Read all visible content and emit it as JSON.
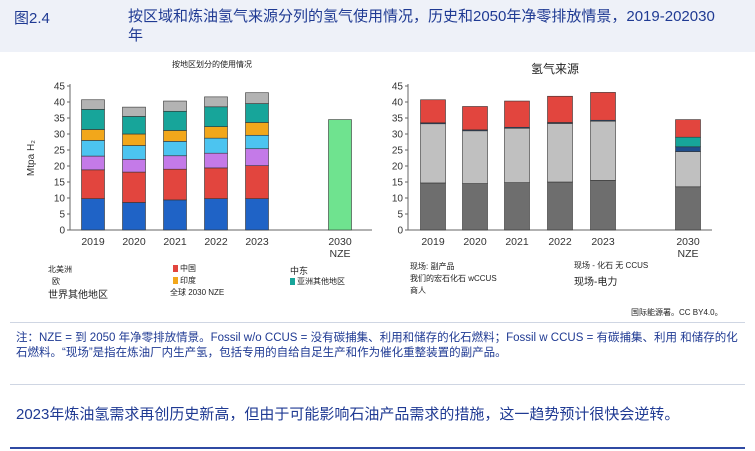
{
  "figure": {
    "label": "图2.4",
    "title": "按区域和炼油氢气来源分列的氢气使用情况，历史和2050年净零排放情景，2019-202030年",
    "source": "国际能源署。CC BY4.0。",
    "note": "注：NZE = 到 2050 年净零排放情景。Fossil w/o CCUS = 没有碳捕集、利用和储存的化石燃料；Fossil w CCUS = 有碳捕集、利用 和储存的化石燃料。“现场”是指在炼油厂内生产氢，包括专用的自给自足生产和作为催化重整装置的副产品。",
    "summary": "2023年炼油氢需求再创历史新高，但由于可能影响石油产品需求的措施，这一趋势预计很快会逆转。"
  },
  "legend_left": {
    "north_america": "北美洲",
    "china": "中国",
    "eu": "欧",
    "india": "印度",
    "middle_east": "中东",
    "other_asia_pacific": "亚洲其他地区",
    "rest_of_world": "世界其他地区",
    "global_nze": "全球 2030 NZE"
  },
  "legend_right": {
    "onsite_byproduct": "现场: 副产品",
    "fossil_wccus": "我们的宏石化石 wCCUS",
    "merchant": "商人",
    "onsite_fossil_no_ccus": "现场 - 化石 无 CCUS",
    "onsite_electricity": "现场-电力"
  },
  "chart_data": [
    {
      "type": "bar",
      "title": "按地区划分的使用情况",
      "ylabel": "Mtpa H₂",
      "ylim": [
        0,
        45
      ],
      "yticks": [
        0,
        5,
        10,
        15,
        20,
        25,
        30,
        35,
        40,
        45
      ],
      "categories": [
        "2019",
        "2020",
        "2021",
        "2022",
        "2023",
        "2030 NZE"
      ],
      "stacked": true,
      "grid": false,
      "series": [
        {
          "name": "北美洲",
          "color": "#1f63c6",
          "values": [
            9.8,
            8.6,
            9.4,
            9.8,
            9.8,
            0
          ]
        },
        {
          "name": "中国",
          "color": "#e2453e",
          "values": [
            9.0,
            9.5,
            9.6,
            9.6,
            10.3,
            0
          ]
        },
        {
          "name": "欧",
          "color": "#c47ae8",
          "values": [
            4.3,
            4.0,
            4.2,
            4.6,
            5.3,
            0
          ]
        },
        {
          "name": "印度",
          "color": "#4cc4f0",
          "values": [
            4.9,
            4.3,
            4.5,
            4.7,
            4.2,
            0
          ]
        },
        {
          "name": "中东",
          "color": "#f2a71b",
          "values": [
            3.4,
            3.6,
            3.4,
            3.6,
            4.0,
            0
          ]
        },
        {
          "name": "亚洲其他地区",
          "color": "#17a59a",
          "values": [
            6.3,
            5.5,
            6.0,
            6.2,
            5.9,
            0
          ]
        },
        {
          "name": "世界其他地区",
          "color": "#b3b3b3",
          "values": [
            3.0,
            2.9,
            3.2,
            3.1,
            3.4,
            0
          ]
        },
        {
          "name": "全球 2030 NZE",
          "color": "#6fe38f",
          "values": [
            0,
            0,
            0,
            0,
            0,
            34.5
          ]
        }
      ]
    },
    {
      "type": "bar",
      "title": "氢气来源",
      "ylim": [
        0,
        45
      ],
      "yticks": [
        0,
        5,
        10,
        15,
        20,
        25,
        30,
        35,
        40,
        45
      ],
      "categories": [
        "2019",
        "2020",
        "2021",
        "2022",
        "2023",
        "2030 NZE"
      ],
      "stacked": true,
      "grid": false,
      "series": [
        {
          "name": "现场 - 化石 无 CCUS",
          "color": "#6e6e6e",
          "values": [
            14.7,
            14.5,
            14.8,
            15.0,
            15.5,
            13.5
          ]
        },
        {
          "name": "现场: 副产品",
          "color": "#c0c0c0",
          "values": [
            18.5,
            16.5,
            17.0,
            18.3,
            18.5,
            11.0
          ]
        },
        {
          "name": "我们的宏石化石 wCCUS",
          "color": "#1f4e8c",
          "values": [
            0.3,
            0.3,
            0.3,
            0.3,
            0.3,
            1.5
          ]
        },
        {
          "name": "商人",
          "color": "#17a59a",
          "values": [
            0,
            0,
            0,
            0,
            0,
            3.0
          ]
        },
        {
          "name": "现场-电力",
          "color": "#e2453e",
          "values": [
            7.2,
            7.3,
            8.2,
            8.2,
            8.7,
            5.5
          ]
        }
      ]
    }
  ]
}
